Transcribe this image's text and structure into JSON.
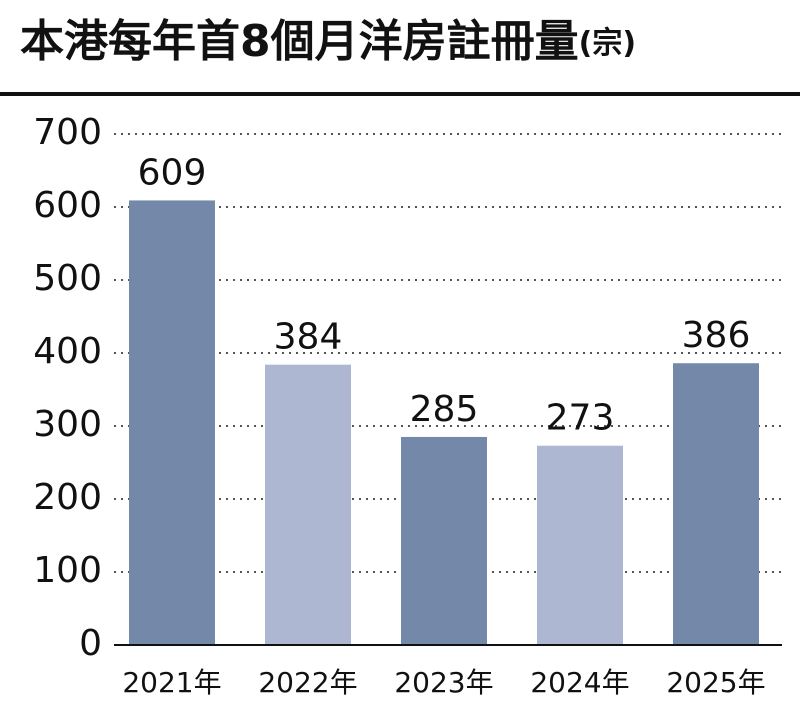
{
  "chart_data": {
    "type": "bar",
    "title": "本港每年首8個月洋房註冊量",
    "unit": "(宗)",
    "categories": [
      "2021年",
      "2022年",
      "2023年",
      "2024年",
      "2025年"
    ],
    "values": [
      609,
      384,
      285,
      273,
      386
    ],
    "colors": [
      "#7489a9",
      "#aeb7d1",
      "#7489a9",
      "#aeb7d1",
      "#7489a9"
    ],
    "ylim": [
      0,
      700
    ],
    "yticks": [
      0,
      100,
      200,
      300,
      400,
      500,
      600,
      700
    ],
    "grid": true
  }
}
